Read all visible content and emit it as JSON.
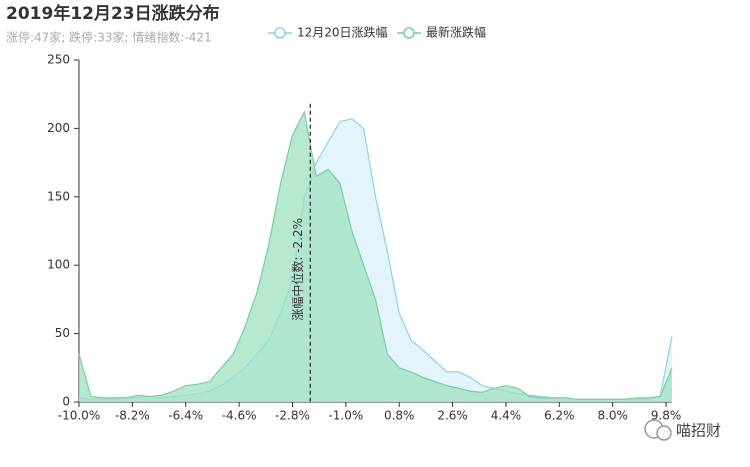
{
  "chart_data": {
    "type": "area",
    "title": "2019年12月23日涨跌分布",
    "subtitle": "涨停:47家; 跌停:33家; 情绪指数:-421",
    "x": [
      -10,
      -9.6,
      -9.2,
      -8.8,
      -8.4,
      -8,
      -7.6,
      -7.2,
      -6.8,
      -6.4,
      -6,
      -5.6,
      -5.2,
      -4.8,
      -4.4,
      -4,
      -3.6,
      -3.2,
      -2.8,
      -2.4,
      -2,
      -1.6,
      -1.2,
      -0.8,
      -0.4,
      0,
      0.4,
      0.8,
      1.2,
      1.6,
      2,
      2.4,
      2.8,
      3.2,
      3.6,
      4,
      4.4,
      4.8,
      5.2,
      5.6,
      6,
      6.4,
      6.8,
      7.2,
      7.6,
      8,
      8.4,
      8.8,
      9.2,
      9.6,
      10
    ],
    "series": [
      {
        "name": "12月20日涨跌幅",
        "color": "#8dd1ef",
        "fill": "#d9f0fb",
        "values": [
          3,
          2,
          2,
          2,
          3,
          3,
          4,
          3,
          4,
          5,
          6,
          8,
          12,
          18,
          25,
          35,
          45,
          65,
          90,
          150,
          175,
          190,
          205,
          207,
          200,
          150,
          110,
          65,
          45,
          38,
          30,
          22,
          22,
          18,
          12,
          10,
          8,
          6,
          5,
          4,
          3,
          3,
          2,
          2,
          2,
          2,
          2,
          2,
          2,
          4,
          48
        ]
      },
      {
        "name": "最新涨跌幅",
        "color": "#79cf9f",
        "fill": "#9fe0c0",
        "values": [
          35,
          4,
          3,
          3,
          3,
          5,
          4,
          5,
          8,
          12,
          13,
          15,
          25,
          35,
          55,
          80,
          115,
          160,
          195,
          212,
          165,
          170,
          160,
          125,
          100,
          75,
          35,
          25,
          22,
          18,
          15,
          12,
          10,
          8,
          7,
          10,
          12,
          10,
          4,
          3,
          3,
          3,
          2,
          2,
          2,
          2,
          2,
          3,
          3,
          4,
          25
        ]
      }
    ],
    "median_line": {
      "value": -2.2,
      "label": "涨幅中位数: -2.2%"
    },
    "xlim": [
      -10,
      10
    ],
    "xticks": [
      {
        "value": -10,
        "label": "-10.0%"
      },
      {
        "value": -8.2,
        "label": "-8.2%"
      },
      {
        "value": -6.4,
        "label": "-6.4%"
      },
      {
        "value": -4.6,
        "label": "-4.6%"
      },
      {
        "value": -2.8,
        "label": "-2.8%"
      },
      {
        "value": -1,
        "label": "-1.0%"
      },
      {
        "value": 0.8,
        "label": "0.8%"
      },
      {
        "value": 2.6,
        "label": "2.6%"
      },
      {
        "value": 4.4,
        "label": "4.4%"
      },
      {
        "value": 6.2,
        "label": "6.2%"
      },
      {
        "value": 8,
        "label": "8.0%"
      },
      {
        "value": 9.8,
        "label": "9.8%"
      }
    ],
    "ylim": [
      0,
      250
    ],
    "yticks": [
      0,
      50,
      100,
      150,
      200,
      250
    ],
    "grid": false,
    "watermark": "喵招财"
  }
}
